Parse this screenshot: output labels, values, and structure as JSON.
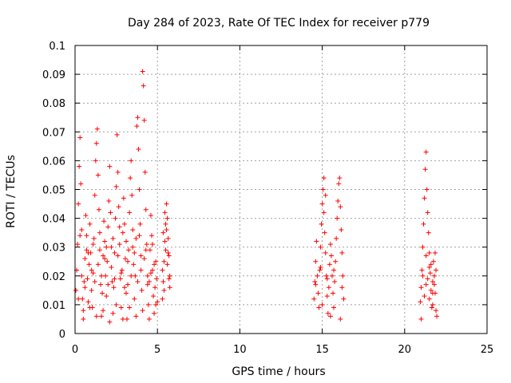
{
  "chart_data": {
    "type": "scatter",
    "title": "Day 284 of 2023, Rate Of TEC Index for receiver p779",
    "xlabel": "GPS time / hours",
    "ylabel": "ROTI / TECUs",
    "xlim": [
      0,
      25
    ],
    "ylim": [
      0,
      0.1
    ],
    "x_ticks": [
      "0",
      "5",
      "10",
      "15",
      "20",
      "25"
    ],
    "y_ticks": [
      "0",
      "0.01",
      "0.02",
      "0.03",
      "0.04",
      "0.05",
      "0.06",
      "0.07",
      "0.08",
      "0.09",
      "0.1"
    ],
    "grid": true,
    "marker": "+",
    "colors": {
      "series": "#ff0000",
      "grid": "#a0a0a0",
      "axis": "#000000"
    },
    "series": [
      {
        "points": [
          [
            0.05,
            0.015
          ],
          [
            0.1,
            0.022
          ],
          [
            0.15,
            0.031
          ],
          [
            0.2,
            0.045
          ],
          [
            0.25,
            0.058
          ],
          [
            0.3,
            0.068
          ],
          [
            0.35,
            0.052
          ],
          [
            0.4,
            0.036
          ],
          [
            0.45,
            0.012
          ],
          [
            0.5,
            0.008
          ],
          [
            0.55,
            0.018
          ],
          [
            0.6,
            0.026
          ],
          [
            0.65,
            0.041
          ],
          [
            0.7,
            0.034
          ],
          [
            0.75,
            0.019
          ],
          [
            0.8,
            0.011
          ],
          [
            0.85,
            0.024
          ],
          [
            0.9,
            0.038
          ],
          [
            0.95,
            0.028
          ],
          [
            1.0,
            0.015
          ],
          [
            1.05,
            0.009
          ],
          [
            1.1,
            0.021
          ],
          [
            1.15,
            0.033
          ],
          [
            1.2,
            0.048
          ],
          [
            1.25,
            0.06
          ],
          [
            1.3,
            0.066
          ],
          [
            1.35,
            0.071
          ],
          [
            1.4,
            0.055
          ],
          [
            1.45,
            0.043
          ],
          [
            1.5,
            0.029
          ],
          [
            1.55,
            0.017
          ],
          [
            1.6,
            0.006
          ],
          [
            1.65,
            0.014
          ],
          [
            1.7,
            0.027
          ],
          [
            1.75,
            0.039
          ],
          [
            1.8,
            0.032
          ],
          [
            1.85,
            0.02
          ],
          [
            1.9,
            0.013
          ],
          [
            1.95,
            0.025
          ],
          [
            2.0,
            0.037
          ],
          [
            2.05,
            0.046
          ],
          [
            2.1,
            0.058
          ],
          [
            2.15,
            0.042
          ],
          [
            2.2,
            0.03
          ],
          [
            2.25,
            0.018
          ],
          [
            2.3,
            0.007
          ],
          [
            2.35,
            0.016
          ],
          [
            2.4,
            0.028
          ],
          [
            2.45,
            0.04
          ],
          [
            2.5,
            0.051
          ],
          [
            2.55,
            0.069
          ],
          [
            2.6,
            0.056
          ],
          [
            2.65,
            0.044
          ],
          [
            2.7,
            0.031
          ],
          [
            2.75,
            0.019
          ],
          [
            2.8,
            0.009
          ],
          [
            2.85,
            0.022
          ],
          [
            2.9,
            0.035
          ],
          [
            2.95,
            0.047
          ],
          [
            3.0,
            0.038
          ],
          [
            3.05,
            0.026
          ],
          [
            3.1,
            0.014
          ],
          [
            3.15,
            0.005
          ],
          [
            3.2,
            0.017
          ],
          [
            3.25,
            0.029
          ],
          [
            3.3,
            0.042
          ],
          [
            3.35,
            0.054
          ],
          [
            3.4,
            0.06
          ],
          [
            3.45,
            0.048
          ],
          [
            3.5,
            0.036
          ],
          [
            3.55,
            0.024
          ],
          [
            3.6,
            0.012
          ],
          [
            3.65,
            0.02
          ],
          [
            3.7,
            0.033
          ],
          [
            3.75,
            0.072
          ],
          [
            3.8,
            0.075
          ],
          [
            3.85,
            0.064
          ],
          [
            3.9,
            0.05
          ],
          [
            3.95,
            0.038
          ],
          [
            4.0,
            0.027
          ],
          [
            4.05,
            0.015
          ],
          [
            4.1,
            0.091
          ],
          [
            4.15,
            0.086
          ],
          [
            4.2,
            0.074
          ],
          [
            4.25,
            0.056
          ],
          [
            4.3,
            0.043
          ],
          [
            4.35,
            0.031
          ],
          [
            4.4,
            0.02
          ],
          [
            4.45,
            0.01
          ],
          [
            4.5,
            0.018
          ],
          [
            4.55,
            0.029
          ],
          [
            4.6,
            0.041
          ],
          [
            4.65,
            0.034
          ],
          [
            4.7,
            0.022
          ],
          [
            4.75,
            0.013
          ],
          [
            4.8,
            0.007
          ],
          [
            4.85,
            0.016
          ],
          [
            4.9,
            0.025
          ],
          [
            4.95,
            0.019
          ],
          [
            5.0,
            0.011
          ],
          [
            0.2,
            0.012
          ],
          [
            0.4,
            0.02
          ],
          [
            0.6,
            0.016
          ],
          [
            0.8,
            0.028
          ],
          [
            1.0,
            0.022
          ],
          [
            1.2,
            0.018
          ],
          [
            1.4,
            0.024
          ],
          [
            1.6,
            0.02
          ],
          [
            1.8,
            0.026
          ],
          [
            2.0,
            0.017
          ],
          [
            2.2,
            0.023
          ],
          [
            2.4,
            0.019
          ],
          [
            2.6,
            0.027
          ],
          [
            2.8,
            0.021
          ],
          [
            3.0,
            0.016
          ],
          [
            3.2,
            0.025
          ],
          [
            3.4,
            0.02
          ],
          [
            3.6,
            0.028
          ],
          [
            3.8,
            0.018
          ],
          [
            4.0,
            0.022
          ],
          [
            4.2,
            0.026
          ],
          [
            4.4,
            0.017
          ],
          [
            4.6,
            0.021
          ],
          [
            4.8,
            0.024
          ],
          [
            0.3,
            0.034
          ],
          [
            0.7,
            0.029
          ],
          [
            1.1,
            0.031
          ],
          [
            1.5,
            0.035
          ],
          [
            1.9,
            0.03
          ],
          [
            2.3,
            0.033
          ],
          [
            2.7,
            0.037
          ],
          [
            3.1,
            0.032
          ],
          [
            3.5,
            0.03
          ],
          [
            3.9,
            0.034
          ],
          [
            4.3,
            0.029
          ],
          [
            4.7,
            0.031
          ],
          [
            0.5,
            0.005
          ],
          [
            1.3,
            0.006
          ],
          [
            2.1,
            0.004
          ],
          [
            2.9,
            0.005
          ],
          [
            3.7,
            0.006
          ],
          [
            4.5,
            0.005
          ],
          [
            0.9,
            0.009
          ],
          [
            1.7,
            0.008
          ],
          [
            2.5,
            0.01
          ],
          [
            3.3,
            0.009
          ],
          [
            4.1,
            0.008
          ],
          [
            4.9,
            0.01
          ],
          [
            5.3,
            0.012
          ],
          [
            5.35,
            0.018
          ],
          [
            5.4,
            0.025
          ],
          [
            5.45,
            0.032
          ],
          [
            5.5,
            0.038
          ],
          [
            5.55,
            0.045
          ],
          [
            5.6,
            0.04
          ],
          [
            5.65,
            0.033
          ],
          [
            5.7,
            0.027
          ],
          [
            5.75,
            0.02
          ],
          [
            5.3,
            0.022
          ],
          [
            5.4,
            0.015
          ],
          [
            5.5,
            0.029
          ],
          [
            5.6,
            0.024
          ],
          [
            5.7,
            0.019
          ],
          [
            5.35,
            0.035
          ],
          [
            5.45,
            0.042
          ],
          [
            5.55,
            0.036
          ],
          [
            5.65,
            0.028
          ],
          [
            5.75,
            0.016
          ],
          [
            14.5,
            0.012
          ],
          [
            14.55,
            0.018
          ],
          [
            14.6,
            0.025
          ],
          [
            14.65,
            0.032
          ],
          [
            14.7,
            0.02
          ],
          [
            14.75,
            0.014
          ],
          [
            14.8,
            0.009
          ],
          [
            14.85,
            0.022
          ],
          [
            14.9,
            0.03
          ],
          [
            14.95,
            0.038
          ],
          [
            15.0,
            0.045
          ],
          [
            15.05,
            0.05
          ],
          [
            15.1,
            0.042
          ],
          [
            15.15,
            0.035
          ],
          [
            15.2,
            0.028
          ],
          [
            15.25,
            0.02
          ],
          [
            15.3,
            0.013
          ],
          [
            15.35,
            0.007
          ],
          [
            15.4,
            0.016
          ],
          [
            15.45,
            0.024
          ],
          [
            15.5,
            0.031
          ],
          [
            15.55,
            0.027
          ],
          [
            15.6,
            0.02
          ],
          [
            15.65,
            0.014
          ],
          [
            15.7,
            0.009
          ],
          [
            15.75,
            0.018
          ],
          [
            15.8,
            0.025
          ],
          [
            15.85,
            0.033
          ],
          [
            15.9,
            0.04
          ],
          [
            15.95,
            0.046
          ],
          [
            16.0,
            0.052
          ],
          [
            16.05,
            0.054
          ],
          [
            16.1,
            0.044
          ],
          [
            16.15,
            0.036
          ],
          [
            16.2,
            0.028
          ],
          [
            16.25,
            0.02
          ],
          [
            16.3,
            0.012
          ],
          [
            15.1,
            0.054
          ],
          [
            15.2,
            0.048
          ],
          [
            15.0,
            0.01
          ],
          [
            15.5,
            0.006
          ],
          [
            16.1,
            0.005
          ],
          [
            14.6,
            0.017
          ],
          [
            14.9,
            0.023
          ],
          [
            15.3,
            0.019
          ],
          [
            15.7,
            0.022
          ],
          [
            16.2,
            0.016
          ],
          [
            20.95,
            0.011
          ],
          [
            21.0,
            0.016
          ],
          [
            21.05,
            0.022
          ],
          [
            21.1,
            0.03
          ],
          [
            21.15,
            0.038
          ],
          [
            21.2,
            0.047
          ],
          [
            21.25,
            0.057
          ],
          [
            21.3,
            0.063
          ],
          [
            21.35,
            0.05
          ],
          [
            21.4,
            0.042
          ],
          [
            21.45,
            0.035
          ],
          [
            21.5,
            0.028
          ],
          [
            21.55,
            0.021
          ],
          [
            21.6,
            0.015
          ],
          [
            21.65,
            0.009
          ],
          [
            21.7,
            0.018
          ],
          [
            21.75,
            0.025
          ],
          [
            21.8,
            0.02
          ],
          [
            21.85,
            0.014
          ],
          [
            21.9,
            0.008
          ],
          [
            21.95,
            0.006
          ],
          [
            21.0,
            0.005
          ],
          [
            21.2,
            0.013
          ],
          [
            21.4,
            0.019
          ],
          [
            21.6,
            0.024
          ],
          [
            21.8,
            0.017
          ],
          [
            21.3,
            0.027
          ],
          [
            21.5,
            0.012
          ],
          [
            21.7,
            0.01
          ],
          [
            21.9,
            0.022
          ],
          [
            21.1,
            0.02
          ],
          [
            21.3,
            0.017
          ],
          [
            21.5,
            0.023
          ],
          [
            21.7,
            0.014
          ],
          [
            21.85,
            0.028
          ]
        ]
      }
    ]
  }
}
